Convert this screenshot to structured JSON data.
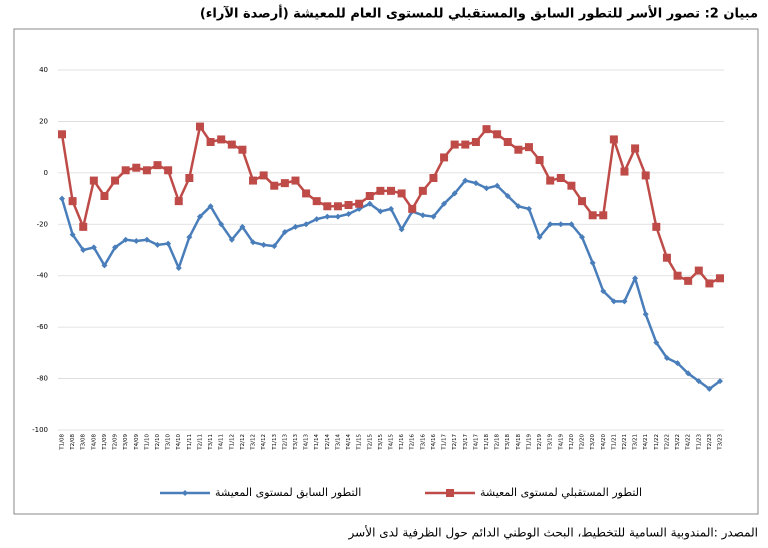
{
  "chart_data": {
    "type": "line",
    "title": "مبيان 2: تصور الأسر للتطور السابق والمستقبلي للمستوى العام للمعيشة (أرصدة الآراء)",
    "source": "المصدر :المندوبية السامية للتخطيط، البحث الوطني الدائم حول الظرفية لدى الأسر",
    "categories": [
      "T1/08",
      "T2/08",
      "T3/08",
      "T4/08",
      "T1/09",
      "T2/09",
      "T3/09",
      "T4/09",
      "T1/10",
      "T2/10",
      "T3/10",
      "T4/10",
      "T1/11",
      "T2/11",
      "T3/11",
      "T4/11",
      "T1/12",
      "T2/12",
      "T3/12",
      "T4/12",
      "T1/13",
      "T2/13",
      "T3/13",
      "T4/13",
      "T1/14",
      "T2/14",
      "T3/14",
      "T4/14",
      "T1/15",
      "T2/15",
      "T3/15",
      "T4/15",
      "T1/16",
      "T2/16",
      "T3/16",
      "T4/16",
      "T1/17",
      "T2/17",
      "T3/17",
      "T4/17",
      "T1/18",
      "T2/18",
      "T3/18",
      "T4/18",
      "T1/19",
      "T2/19",
      "T3/19",
      "T4/19",
      "T1/20",
      "T2/20",
      "T3/20",
      "T4/20",
      "T1/21",
      "T2/21",
      "T3/21",
      "T4/21",
      "T1/22",
      "T2/22",
      "T3/22",
      "T4/22",
      "T1/23",
      "T2/23",
      "T3/23"
    ],
    "series": [
      {
        "name": "التطور السابق لمستوى المعيشة",
        "color": "#4a7ebb",
        "marker": "diamond",
        "values": [
          -10,
          -24,
          -30,
          -29,
          -36,
          -29,
          -26,
          -26.5,
          -26,
          -28,
          -27.5,
          -37,
          -25,
          -17,
          -13,
          -20,
          -26,
          -21,
          -27,
          -28,
          -28.5,
          -23,
          -21,
          -20,
          -18,
          -17,
          -17,
          -16,
          -14,
          -12,
          -15,
          -14,
          -22,
          -15,
          -16.5,
          -17,
          -12,
          -8,
          -3,
          -4,
          -6,
          -5,
          -9,
          -13,
          -14,
          -25,
          -20,
          -20,
          -20,
          -25,
          -35,
          -46,
          -50,
          -50,
          -41,
          -55,
          -66,
          -72,
          -74,
          -78,
          -81,
          -84,
          -81
        ]
      },
      {
        "name": "التطور المستقبلي لمستوى المعيشة",
        "color": "#be4b48",
        "marker": "square",
        "values": [
          15,
          -11,
          -21,
          -3,
          -9,
          -3,
          1,
          2,
          1,
          3,
          1,
          -11,
          -2,
          18,
          12,
          13,
          11,
          9,
          -3,
          -1,
          -5,
          -4,
          -3,
          -8,
          -11,
          -13,
          -13,
          -12.5,
          -12,
          -9,
          -7,
          -7,
          -8,
          -14,
          -7,
          -2,
          6,
          11,
          11,
          12,
          17,
          15,
          12,
          9,
          10,
          5,
          -3,
          -2,
          -5,
          -11,
          -16.5,
          -16.5,
          13,
          0.5,
          9.5,
          -1,
          -21,
          -33,
          -40,
          -42,
          -38,
          -43,
          -41
        ]
      }
    ],
    "ylim": [
      -100,
      40
    ],
    "yticks": [
      -100,
      -80,
      -60,
      -40,
      -20,
      0,
      20,
      40
    ],
    "grid": true
  }
}
